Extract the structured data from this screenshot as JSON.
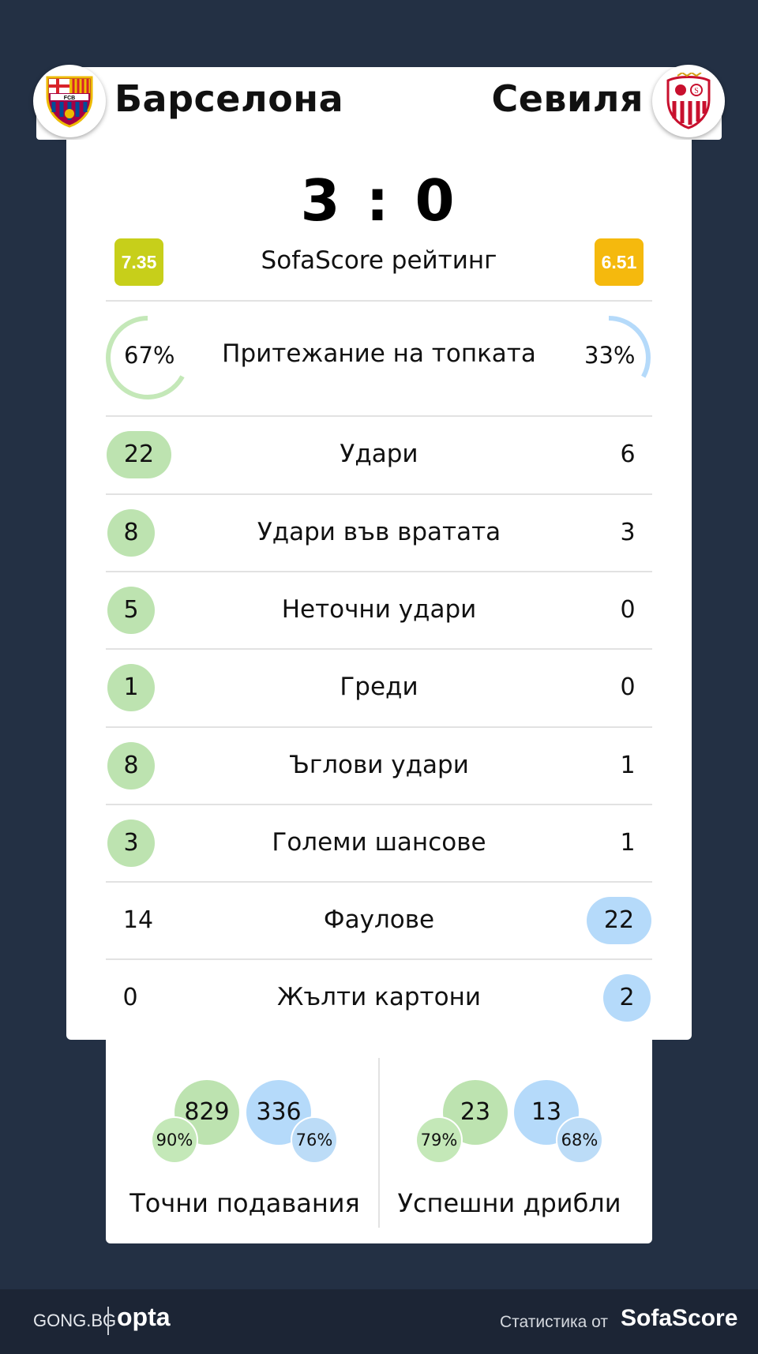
{
  "teams": {
    "home": "Барселона",
    "away": "Севиля"
  },
  "score": "3 : 0",
  "rating": {
    "label": "SofaScore рейтинг",
    "home": "7.35",
    "away": "6.51"
  },
  "possession": {
    "label": "Притежание на топката",
    "home": "67%",
    "away": "33%",
    "home_fraction": 0.67,
    "away_fraction": 0.33
  },
  "stats": [
    {
      "label": "Удари",
      "home": "22",
      "away": "6",
      "highlight": "home"
    },
    {
      "label": "Удари във вратата",
      "home": "8",
      "away": "3",
      "highlight": "home"
    },
    {
      "label": "Неточни удари",
      "home": "5",
      "away": "0",
      "highlight": "home"
    },
    {
      "label": "Греди",
      "home": "1",
      "away": "0",
      "highlight": "home"
    },
    {
      "label": "Ъглови удари",
      "home": "8",
      "away": "1",
      "highlight": "home"
    },
    {
      "label": "Големи шансове",
      "home": "3",
      "away": "1",
      "highlight": "home"
    },
    {
      "label": "Фаулове",
      "home": "14",
      "away": "22",
      "highlight": "away"
    },
    {
      "label": "Жълти картони",
      "home": "0",
      "away": "2",
      "highlight": "away"
    }
  ],
  "passes": {
    "label": "Точни подавания",
    "home": "829",
    "home_pct": "90%",
    "away": "336",
    "away_pct": "76%"
  },
  "dribbles": {
    "label": "Успешни дрибли",
    "home": "23",
    "home_pct": "79%",
    "away": "13",
    "away_pct": "68%"
  },
  "footer": {
    "gong": "GONG.BG",
    "opta": "opta",
    "stats_by": "Статистика от",
    "sofascore": "SofaScore"
  },
  "colors": {
    "home_highlight": "#bde3b0",
    "away_highlight": "#b5dafa",
    "background": "#233044",
    "home_rating": "#c7cf1a",
    "away_rating": "#f5b90d"
  },
  "icons": {
    "home_logo": "fc-barcelona-crest-icon",
    "away_logo": "sevilla-crest-icon"
  }
}
